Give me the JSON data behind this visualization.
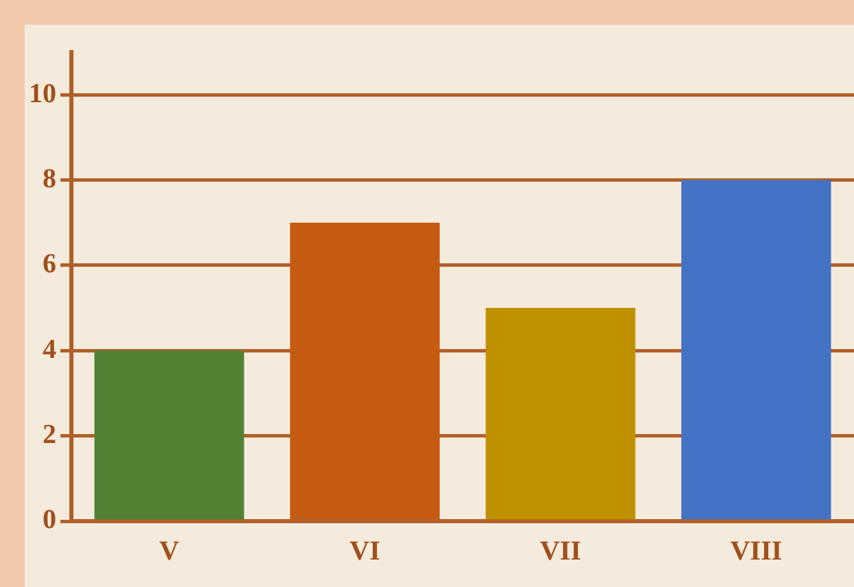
{
  "chart_data": {
    "type": "bar",
    "categories": [
      "V",
      "VI",
      "VII",
      "VIII"
    ],
    "values": [
      4,
      7,
      5,
      8
    ],
    "colors": [
      "#548235",
      "#c55a11",
      "#bf9000",
      "#4472c4"
    ],
    "ylim": [
      0,
      11
    ],
    "yticks": [
      0,
      2,
      4,
      6,
      8,
      10
    ],
    "grid": "y",
    "legend": false
  }
}
